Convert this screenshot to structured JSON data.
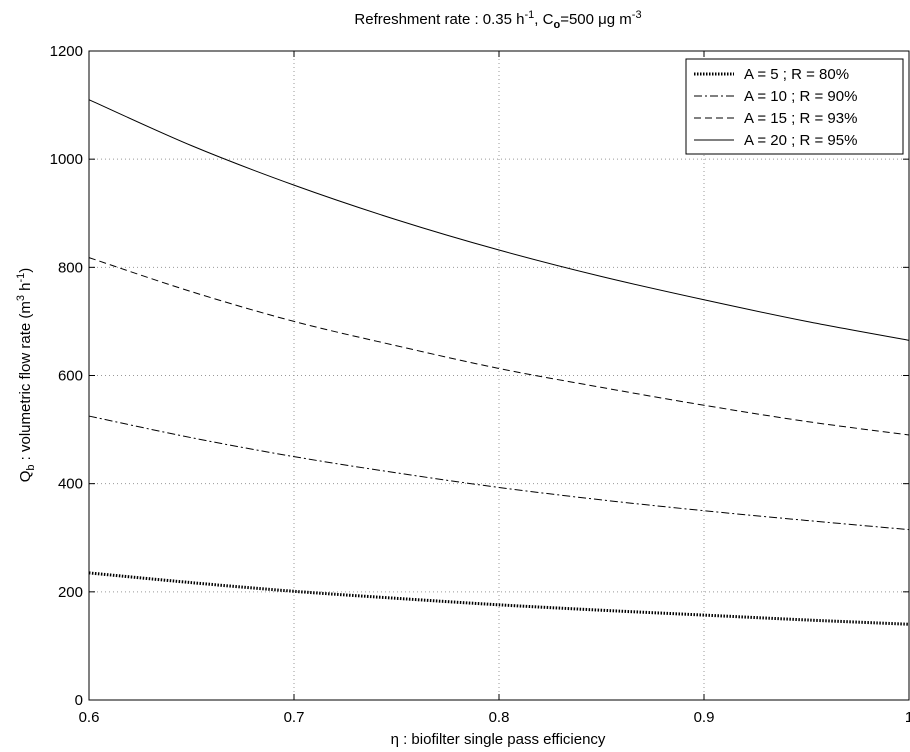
{
  "chart_data": {
    "type": "line",
    "title": "Refreshment rate : 0.35 h",
    "title_sup": "-1",
    "title_mid": ", C",
    "title_sub": "o",
    "title_tail": "=500 μg m",
    "title_sup2": "-3",
    "xlabel": "η : biofilter single pass efficiency",
    "ylabel_main": "Q",
    "ylabel_sub": "b",
    "ylabel_mid": " : volumetric flow rate (m",
    "ylabel_sup": "3",
    "ylabel_mid2": " h",
    "ylabel_sup2": "-1",
    "ylabel_end": ")",
    "xlim": [
      0.6,
      1.0
    ],
    "ylim": [
      0,
      1200
    ],
    "xticks": [
      0.6,
      0.7,
      0.8,
      0.9,
      1.0
    ],
    "xtick_labels": [
      "0.6",
      "0.7",
      "0.8",
      "0.9",
      "1"
    ],
    "yticks": [
      0,
      200,
      400,
      600,
      800,
      1000,
      1200
    ],
    "ytick_labels": [
      "0",
      "200",
      "400",
      "600",
      "800",
      "1000",
      "1200"
    ],
    "grid": true,
    "legend_position": "top-right",
    "x": [
      0.6,
      0.65,
      0.7,
      0.75,
      0.8,
      0.85,
      0.9,
      0.95,
      1.0
    ],
    "series": [
      {
        "name": "A = 5 ; R = 80%",
        "style": "dotted",
        "values": [
          235,
          217,
          201,
          188,
          176,
          166,
          157,
          148,
          140
        ]
      },
      {
        "name": "A = 10 ; R = 90%",
        "style": "dashdot",
        "values": [
          525,
          485,
          450,
          420,
          393,
          370,
          350,
          332,
          315
        ]
      },
      {
        "name": "A = 15 ; R = 93%",
        "style": "dashed",
        "values": [
          818,
          755,
          700,
          655,
          613,
          578,
          545,
          515,
          490
        ]
      },
      {
        "name": "A = 20 ; R = 95%",
        "style": "solid",
        "values": [
          1110,
          1025,
          952,
          888,
          832,
          783,
          740,
          700,
          665
        ]
      }
    ]
  }
}
